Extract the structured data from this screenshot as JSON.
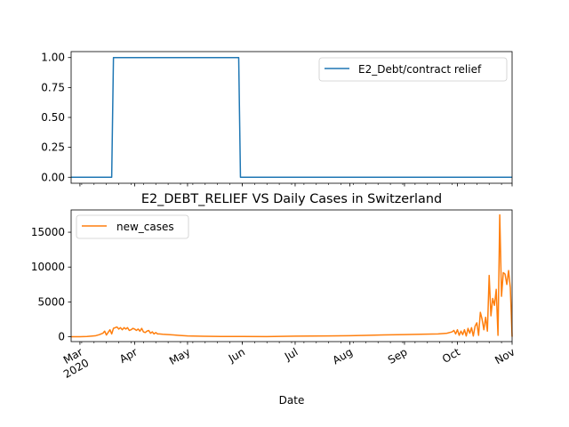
{
  "chart_data": [
    {
      "type": "line",
      "title": "",
      "xlabel": "",
      "ylabel": "",
      "ylim": [
        -0.05,
        1.05
      ],
      "xlim": [
        "2020-02-25",
        "2020-11-01"
      ],
      "yticks": [
        0.0,
        0.25,
        0.5,
        0.75,
        1.0
      ],
      "ytick_labels": [
        "0.00",
        "0.25",
        "0.50",
        "0.75",
        "1.00"
      ],
      "legend_position": "top-right",
      "series": [
        {
          "name": "E2_Debt/contract relief",
          "color": "#1f77b4",
          "x": [
            "2020-02-25",
            "2020-03-19",
            "2020-03-20",
            "2020-05-30",
            "2020-05-31",
            "2020-11-01"
          ],
          "y": [
            0,
            0,
            1,
            1,
            0,
            0
          ]
        }
      ]
    },
    {
      "type": "line",
      "title": "E2_DEBT_RELIEF VS Daily Cases in Switzerland",
      "xlabel": "Date",
      "ylabel": "",
      "ylim": [
        -700,
        18200
      ],
      "xlim": [
        "2020-02-25",
        "2020-11-01"
      ],
      "yticks": [
        0,
        5000,
        10000,
        15000
      ],
      "ytick_labels": [
        "0",
        "5000",
        "10000",
        "15000"
      ],
      "xticks": [
        "2020-03-01",
        "2020-04-01",
        "2020-05-01",
        "2020-06-01",
        "2020-07-01",
        "2020-08-01",
        "2020-09-01",
        "2020-10-01",
        "2020-11-01"
      ],
      "xtick_labels": [
        "Mar\n2020",
        "Apr",
        "May",
        "Jun",
        "Jul",
        "Aug",
        "Sep",
        "Oct",
        "Nov"
      ],
      "legend_position": "top-left",
      "grid": false,
      "series": [
        {
          "name": "new_cases",
          "color": "#ff7f0e",
          "x": [
            "2020-02-25",
            "2020-03-01",
            "2020-03-05",
            "2020-03-08",
            "2020-03-10",
            "2020-03-12",
            "2020-03-14",
            "2020-03-15",
            "2020-03-16",
            "2020-03-18",
            "2020-03-19",
            "2020-03-20",
            "2020-03-21",
            "2020-03-22",
            "2020-03-23",
            "2020-03-24",
            "2020-03-25",
            "2020-03-26",
            "2020-03-27",
            "2020-03-28",
            "2020-03-29",
            "2020-03-30",
            "2020-03-31",
            "2020-04-01",
            "2020-04-02",
            "2020-04-03",
            "2020-04-04",
            "2020-04-05",
            "2020-04-06",
            "2020-04-07",
            "2020-04-08",
            "2020-04-09",
            "2020-04-10",
            "2020-04-11",
            "2020-04-12",
            "2020-04-13",
            "2020-04-14",
            "2020-04-15",
            "2020-04-17",
            "2020-04-20",
            "2020-04-23",
            "2020-04-26",
            "2020-05-01",
            "2020-05-10",
            "2020-05-20",
            "2020-06-01",
            "2020-06-15",
            "2020-07-01",
            "2020-07-10",
            "2020-07-20",
            "2020-08-01",
            "2020-08-10",
            "2020-08-20",
            "2020-09-01",
            "2020-09-10",
            "2020-09-20",
            "2020-09-25",
            "2020-09-28",
            "2020-09-29",
            "2020-09-30",
            "2020-10-01",
            "2020-10-02",
            "2020-10-03",
            "2020-10-04",
            "2020-10-05",
            "2020-10-06",
            "2020-10-07",
            "2020-10-08",
            "2020-10-09",
            "2020-10-10",
            "2020-10-11",
            "2020-10-12",
            "2020-10-13",
            "2020-10-14",
            "2020-10-15",
            "2020-10-16",
            "2020-10-17",
            "2020-10-18",
            "2020-10-19",
            "2020-10-20",
            "2020-10-21",
            "2020-10-22",
            "2020-10-23",
            "2020-10-24",
            "2020-10-25",
            "2020-10-26",
            "2020-10-27",
            "2020-10-28",
            "2020-10-29",
            "2020-10-30",
            "2020-10-31",
            "2020-11-01"
          ],
          "y": [
            0,
            10,
            40,
            100,
            150,
            300,
            500,
            800,
            250,
            1000,
            400,
            1200,
            1300,
            1400,
            1100,
            1300,
            1000,
            1300,
            1100,
            1300,
            900,
            1000,
            1200,
            1100,
            900,
            1100,
            800,
            1200,
            700,
            600,
            800,
            900,
            500,
            700,
            400,
            600,
            400,
            400,
            350,
            300,
            250,
            200,
            120,
            60,
            40,
            30,
            20,
            80,
            100,
            120,
            150,
            200,
            250,
            300,
            350,
            400,
            500,
            700,
            900,
            400,
            1000,
            200,
            800,
            300,
            1000,
            100,
            1200,
            500,
            1300,
            100,
            1500,
            2000,
            200,
            3500,
            2500,
            1000,
            2800,
            800,
            8800,
            3000,
            5500,
            4500,
            6800,
            200,
            17500,
            5800,
            9200,
            9000,
            7500,
            9500,
            7000,
            0
          ]
        }
      ]
    }
  ]
}
